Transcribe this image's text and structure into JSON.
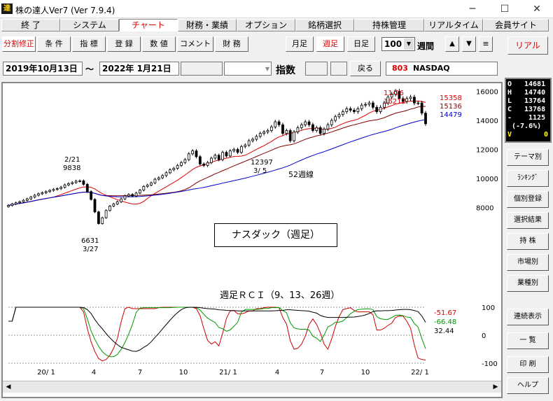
{
  "window": {
    "icon_text": "達",
    "title": "株の達人Ver7 (Ver 7.9.4)"
  },
  "menu": [
    {
      "label": "終 了"
    },
    {
      "label": "システム"
    },
    {
      "label": "チャート"
    },
    {
      "label": "財務・業績"
    },
    {
      "label": "オプション"
    },
    {
      "label": "銘柄選択"
    },
    {
      "label": "持株管理"
    },
    {
      "label": "リアルタイム"
    },
    {
      "label": "会員サイト"
    }
  ],
  "toolbar": {
    "buttons": [
      "分割修正",
      "条 件",
      "指 標",
      "登 録",
      "数 値",
      "コメント",
      "財 務"
    ],
    "period_buttons": [
      "月足",
      "週足",
      "日足"
    ],
    "active_period": "週足",
    "count": "100",
    "count_unit": "週間",
    "real_label": "リアル"
  },
  "date_range": {
    "from": "2019年10月13日",
    "sep": "〜",
    "to": "2022年 1月21日",
    "kind": "指数",
    "back_label": "戻る",
    "code": "803",
    "name": "NASDAQ"
  },
  "quote": {
    "rows": [
      {
        "k": "O",
        "v": "14681"
      },
      {
        "k": "H",
        "v": "14740"
      },
      {
        "k": "L",
        "v": "13764"
      },
      {
        "k": "C",
        "v": "13768"
      },
      {
        "k": "-",
        "v": "1125"
      },
      {
        "k": "",
        "v": "(-7.6%)"
      },
      {
        "k": "V",
        "v": "0"
      }
    ]
  },
  "side_buttons": [
    "テーマ別",
    "ﾗﾝｷﾝｸﾞ",
    "個別登録",
    "選択結果",
    "持 株",
    "市場別",
    "業種別",
    "連続表示",
    "一 覧",
    "印 刷",
    "ヘルプ"
  ],
  "chart_annotations": {
    "high_date": "11/26",
    "high_value": "16212",
    "feb_date": "2/21",
    "feb_value": "9838",
    "low_value": "6631",
    "low_date": "3/27",
    "mar_value": "12397",
    "mar_date": "3/ 5",
    "ma52_label": "52週線",
    "caption": "ナスダック（週足）",
    "rci_title": "週足ＲＣＩ（9、13、26週）",
    "ma_values": [
      "15358",
      "15136",
      "14479"
    ],
    "rci_values": [
      "-51.67",
      "-66.48",
      "32.44"
    ]
  },
  "colors": {
    "candle": "#000000",
    "ma_short": "#e00000",
    "ma_mid": "#800000",
    "ma_long": "#0000cc",
    "rci_short": "#cc0000",
    "rci_mid": "#009900",
    "rci_long": "#000000",
    "accent": "#d00000"
  },
  "chart_data": [
    {
      "type": "candlestick",
      "title": "ナスダック（週足）",
      "period": [
        "2019-10-13",
        "2022-01-21"
      ],
      "y_ticks": [
        8000,
        10000,
        12000,
        14000,
        16000
      ],
      "ylim": [
        6200,
        16600
      ],
      "x_labels": [
        "20/ 1",
        "4",
        "7",
        "10",
        "21/ 1",
        "4",
        "7",
        "10",
        "22/ 1"
      ],
      "close": [
        8150,
        8250,
        8330,
        8400,
        8500,
        8600,
        8720,
        8850,
        8950,
        9020,
        9100,
        9180,
        9250,
        9300,
        9400,
        9560,
        9650,
        9720,
        9820,
        9838,
        9600,
        9100,
        8560,
        7700,
        6900,
        7300,
        7800,
        8100,
        8250,
        8400,
        8600,
        8800,
        8900,
        8800,
        9000,
        9200,
        9450,
        9550,
        9700,
        9950,
        10050,
        10200,
        10400,
        10600,
        10700,
        10900,
        11100,
        11300,
        11700,
        11900,
        11500,
        11000,
        10900,
        11100,
        11400,
        11600,
        11300,
        11800,
        11550,
        11900,
        12000,
        11800,
        12200,
        12300,
        12600,
        12700,
        12900,
        13100,
        13200,
        13300,
        13550,
        13900,
        13700,
        13100,
        13300,
        12600,
        13200,
        13500,
        13700,
        13900,
        13700,
        13300,
        13500,
        13100,
        13400,
        13700,
        14000,
        14250,
        14400,
        14600,
        14800,
        14700,
        14600,
        14800,
        15050,
        15100,
        15200,
        14900,
        14600,
        14900,
        15200,
        15600,
        15800,
        16000,
        15500,
        15300,
        15500,
        15600,
        15200,
        15200,
        14500,
        13768
      ],
      "ma_short_end": 15358,
      "ma_mid_end": 15136,
      "ma_long_end": 14479,
      "annotations": [
        {
          "label": "2/21 9838"
        },
        {
          "label": "6631 3/27"
        },
        {
          "label": "12397 3/ 5"
        },
        {
          "label": "11/26 16212"
        }
      ]
    },
    {
      "type": "line",
      "title": "週足ＲＣＩ（9、13、26週）",
      "y_ticks": [
        100,
        0,
        -100
      ],
      "ylim": [
        -100,
        100
      ],
      "series": [
        {
          "values_end": -51.67
        },
        {
          "values_end": -66.48
        },
        {
          "values_end": 32.44
        }
      ]
    }
  ]
}
